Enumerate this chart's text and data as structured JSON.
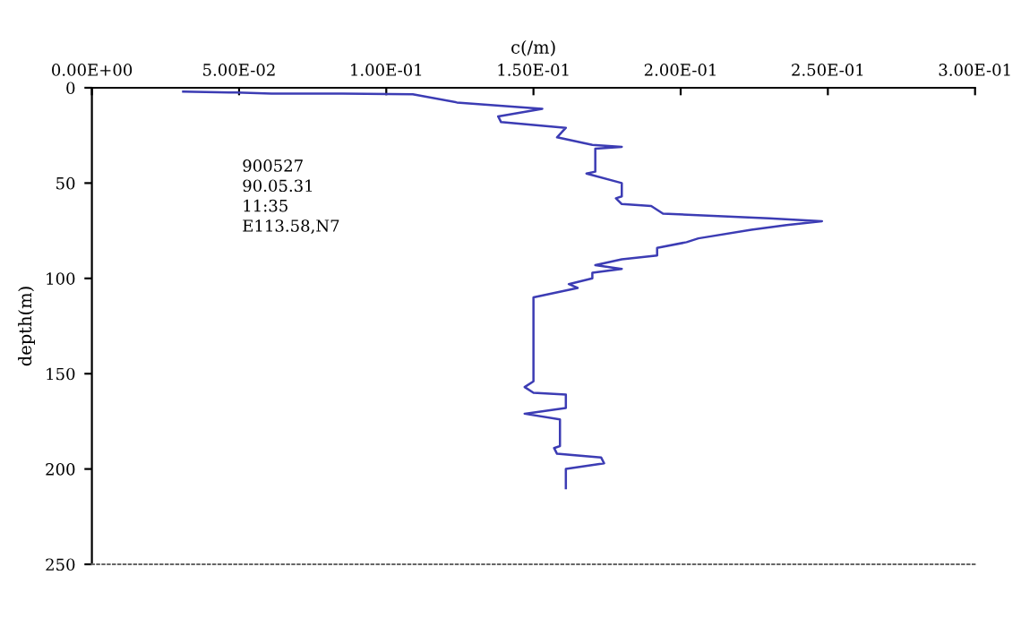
{
  "chart_data": {
    "type": "line",
    "xlabel": "c(/m)",
    "ylabel": "depth(m)",
    "annotations": [
      "900527",
      "90.05.31",
      "11:35",
      "E113.58,N7"
    ],
    "series": [
      {
        "color": "#3c3cb4",
        "x": [
          0.031,
          0.049,
          0.061,
          0.085,
          0.109,
          0.124,
          0.153,
          0.138,
          0.139,
          0.161,
          0.158,
          0.17,
          0.18,
          0.171,
          0.171,
          0.168,
          0.18,
          0.18,
          0.178,
          0.18,
          0.19,
          0.194,
          0.23,
          0.248,
          0.236,
          0.224,
          0.206,
          0.202,
          0.192,
          0.192,
          0.18,
          0.171,
          0.18,
          0.17,
          0.17,
          0.162,
          0.165,
          0.15,
          0.15,
          0.147,
          0.15,
          0.161,
          0.161,
          0.147,
          0.159,
          0.159,
          0.157,
          0.158,
          0.173,
          0.174,
          0.161,
          0.161
        ],
        "values": [
          2,
          2.5,
          3,
          3,
          3.4,
          7.7,
          11,
          15,
          18,
          21,
          26,
          30,
          31,
          32,
          44,
          45,
          50,
          57,
          58,
          61,
          62,
          66,
          68.5,
          70,
          72,
          74.5,
          79,
          81,
          84,
          88,
          90,
          93,
          95,
          97,
          100,
          103,
          105,
          110,
          154,
          157,
          160,
          161,
          168,
          171,
          174,
          188,
          189,
          192,
          194,
          197,
          200,
          210
        ]
      }
    ],
    "xlim": [
      0,
      0.3
    ],
    "xticks": [
      {
        "value": 0,
        "label": "0.00E+00"
      },
      {
        "value": 0.05,
        "label": "5.00E-02"
      },
      {
        "value": 0.1,
        "label": "1.00E-01"
      },
      {
        "value": 0.15,
        "label": "1.50E-01"
      },
      {
        "value": 0.2,
        "label": "2.00E-01"
      },
      {
        "value": 0.25,
        "label": "2.50E-01"
      },
      {
        "value": 0.3,
        "label": "3.00E-01"
      }
    ],
    "ylim": [
      250,
      0
    ],
    "yticks": [
      0,
      50,
      100,
      150,
      200,
      250
    ],
    "grid": false,
    "legend": false,
    "marker": "none",
    "line_style": "solid"
  }
}
